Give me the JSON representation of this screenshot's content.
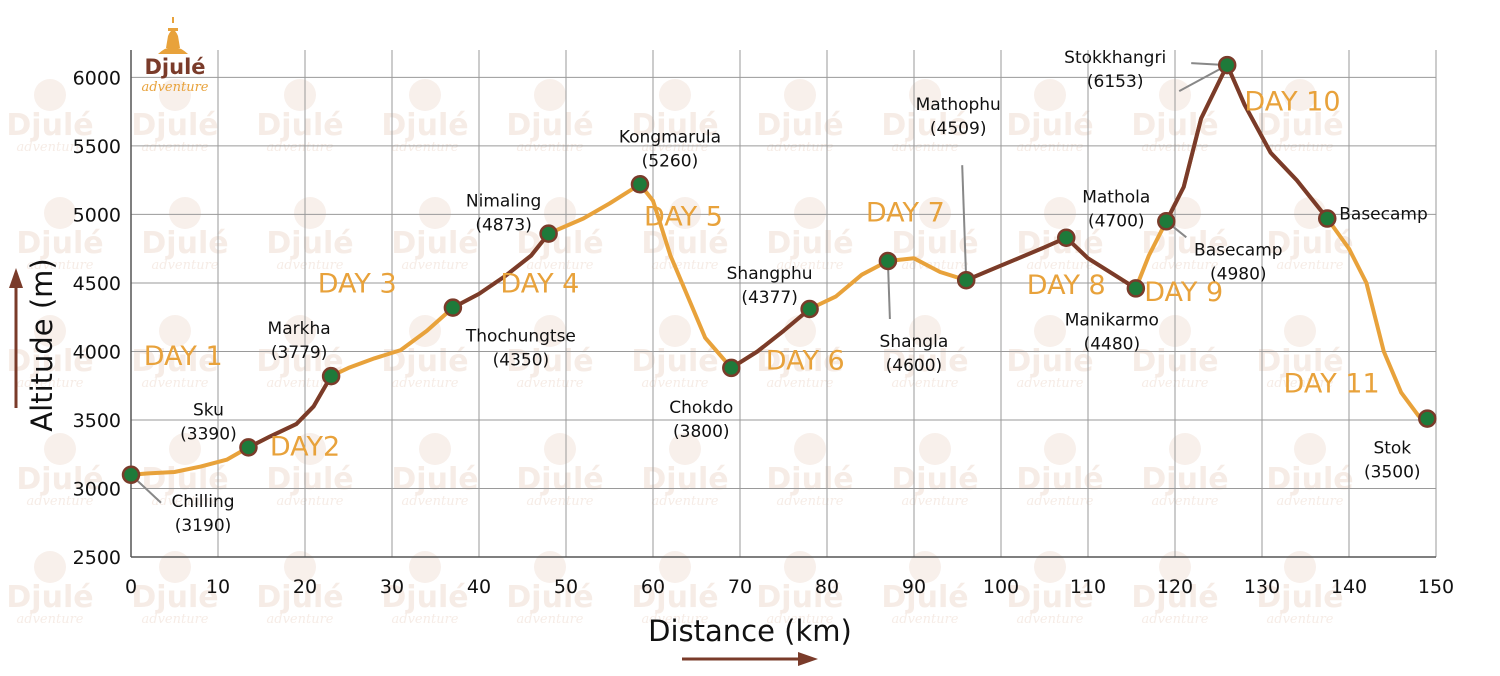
{
  "logo": {
    "name": "Djulé",
    "tagline": "adventure",
    "brand_color": "#7a3b2a",
    "accent_color": "#e8a23b"
  },
  "chart_data": {
    "type": "line",
    "xlabel": "Distance (km)",
    "ylabel": "Altitude (m)",
    "xlim": [
      0,
      150
    ],
    "ylim": [
      2500,
      6200
    ],
    "xticks": [
      0,
      10,
      20,
      30,
      40,
      50,
      60,
      70,
      80,
      90,
      100,
      110,
      120,
      130,
      140,
      150
    ],
    "yticks": [
      2500,
      3000,
      3500,
      4000,
      4500,
      5000,
      5500,
      6000
    ],
    "grid": true,
    "colors": {
      "trail_light": "#e8a23b",
      "trail_dark": "#7a3b2a",
      "waypoint": "#1e7a3a",
      "grid": "#9a9a9a"
    },
    "profile": [
      [
        0,
        3100
      ],
      [
        2,
        3110
      ],
      [
        5,
        3120
      ],
      [
        8,
        3160
      ],
      [
        11,
        3210
      ],
      [
        13.5,
        3300
      ],
      [
        16,
        3380
      ],
      [
        19,
        3470
      ],
      [
        21,
        3600
      ],
      [
        23,
        3820
      ],
      [
        25,
        3880
      ],
      [
        28,
        3950
      ],
      [
        31,
        4010
      ],
      [
        34,
        4150
      ],
      [
        37,
        4320
      ],
      [
        40,
        4420
      ],
      [
        43,
        4550
      ],
      [
        46,
        4700
      ],
      [
        48,
        4860
      ],
      [
        52,
        4970
      ],
      [
        55,
        5080
      ],
      [
        58.5,
        5220
      ],
      [
        60,
        5100
      ],
      [
        62,
        4700
      ],
      [
        64,
        4400
      ],
      [
        66,
        4100
      ],
      [
        69,
        3880
      ],
      [
        72,
        4000
      ],
      [
        75,
        4150
      ],
      [
        78,
        4310
      ],
      [
        81,
        4400
      ],
      [
        84,
        4560
      ],
      [
        87,
        4660
      ],
      [
        90,
        4680
      ],
      [
        93,
        4580
      ],
      [
        96,
        4520
      ],
      [
        99,
        4600
      ],
      [
        102,
        4680
      ],
      [
        105,
        4760
      ],
      [
        107.5,
        4830
      ],
      [
        110,
        4680
      ],
      [
        113,
        4560
      ],
      [
        115.5,
        4460
      ],
      [
        117,
        4700
      ],
      [
        119,
        4950
      ],
      [
        121,
        5200
      ],
      [
        123,
        5700
      ],
      [
        126,
        6090
      ],
      [
        128,
        5800
      ],
      [
        131,
        5450
      ],
      [
        134,
        5250
      ],
      [
        137.5,
        4970
      ],
      [
        140,
        4750
      ],
      [
        142,
        4500
      ],
      [
        144,
        4000
      ],
      [
        146,
        3700
      ],
      [
        148,
        3530
      ],
      [
        149,
        3510
      ]
    ],
    "dark_segments": [
      [
        13.5,
        23
      ],
      [
        37,
        48
      ],
      [
        69,
        78
      ],
      [
        96,
        115.5
      ],
      [
        119,
        126
      ],
      [
        126,
        137.5
      ]
    ],
    "waypoints": [
      {
        "name": "Chilling",
        "altitude": "(3190)",
        "x": 0,
        "y": 3100
      },
      {
        "name": "Sku",
        "altitude": "(3390)",
        "x": 13.5,
        "y": 3300
      },
      {
        "name": "Markha",
        "altitude": "(3779)",
        "x": 23,
        "y": 3820
      },
      {
        "name": "Thochungtse",
        "altitude": "(4350)",
        "x": 37,
        "y": 4320
      },
      {
        "name": "Nimaling",
        "altitude": "(4873)",
        "x": 48,
        "y": 4860
      },
      {
        "name": "Kongmarula",
        "altitude": "(5260)",
        "x": 58.5,
        "y": 5220
      },
      {
        "name": "Chokdo",
        "altitude": "(3800)",
        "x": 69,
        "y": 3880
      },
      {
        "name": "Shangphu",
        "altitude": "(4377)",
        "x": 78,
        "y": 4310
      },
      {
        "name": "Shangla",
        "altitude": "(4600)",
        "x": 87,
        "y": 4660
      },
      {
        "name": "Mathophu",
        "altitude": "(4509)",
        "x": 96,
        "y": 4520
      },
      {
        "name": "Mathola",
        "altitude": "(4700)",
        "x": 107.5,
        "y": 4830
      },
      {
        "name": "Manikarmo",
        "altitude": "(4480)",
        "x": 115.5,
        "y": 4460
      },
      {
        "name": "Basecamp",
        "altitude": "(4980)",
        "x": 119,
        "y": 4950
      },
      {
        "name": "Stokkhangri",
        "altitude": "(6153)",
        "x": 126,
        "y": 6090
      },
      {
        "name": "Basecamp",
        "altitude": "",
        "x": 137.5,
        "y": 4970
      },
      {
        "name": "Stok",
        "altitude": "(3500)",
        "x": 149,
        "y": 3510
      }
    ],
    "day_labels": [
      {
        "text": "DAY 1",
        "x": 6,
        "y": 3900
      },
      {
        "text": "DAY2",
        "x": 20,
        "y": 3240
      },
      {
        "text": "DAY 3",
        "x": 26,
        "y": 4430
      },
      {
        "text": "DAY 4",
        "x": 47,
        "y": 4430
      },
      {
        "text": "DAY 5",
        "x": 63.5,
        "y": 4920
      },
      {
        "text": "DAY 6",
        "x": 77.5,
        "y": 3870
      },
      {
        "text": "DAY 7",
        "x": 89,
        "y": 4950
      },
      {
        "text": "DAY 8",
        "x": 107.5,
        "y": 4420
      },
      {
        "text": "DAY 9",
        "x": 121,
        "y": 4370
      },
      {
        "text": "DAY 10",
        "x": 133.5,
        "y": 5760
      },
      {
        "text": "DAY 11",
        "x": 138,
        "y": 3700
      }
    ]
  }
}
